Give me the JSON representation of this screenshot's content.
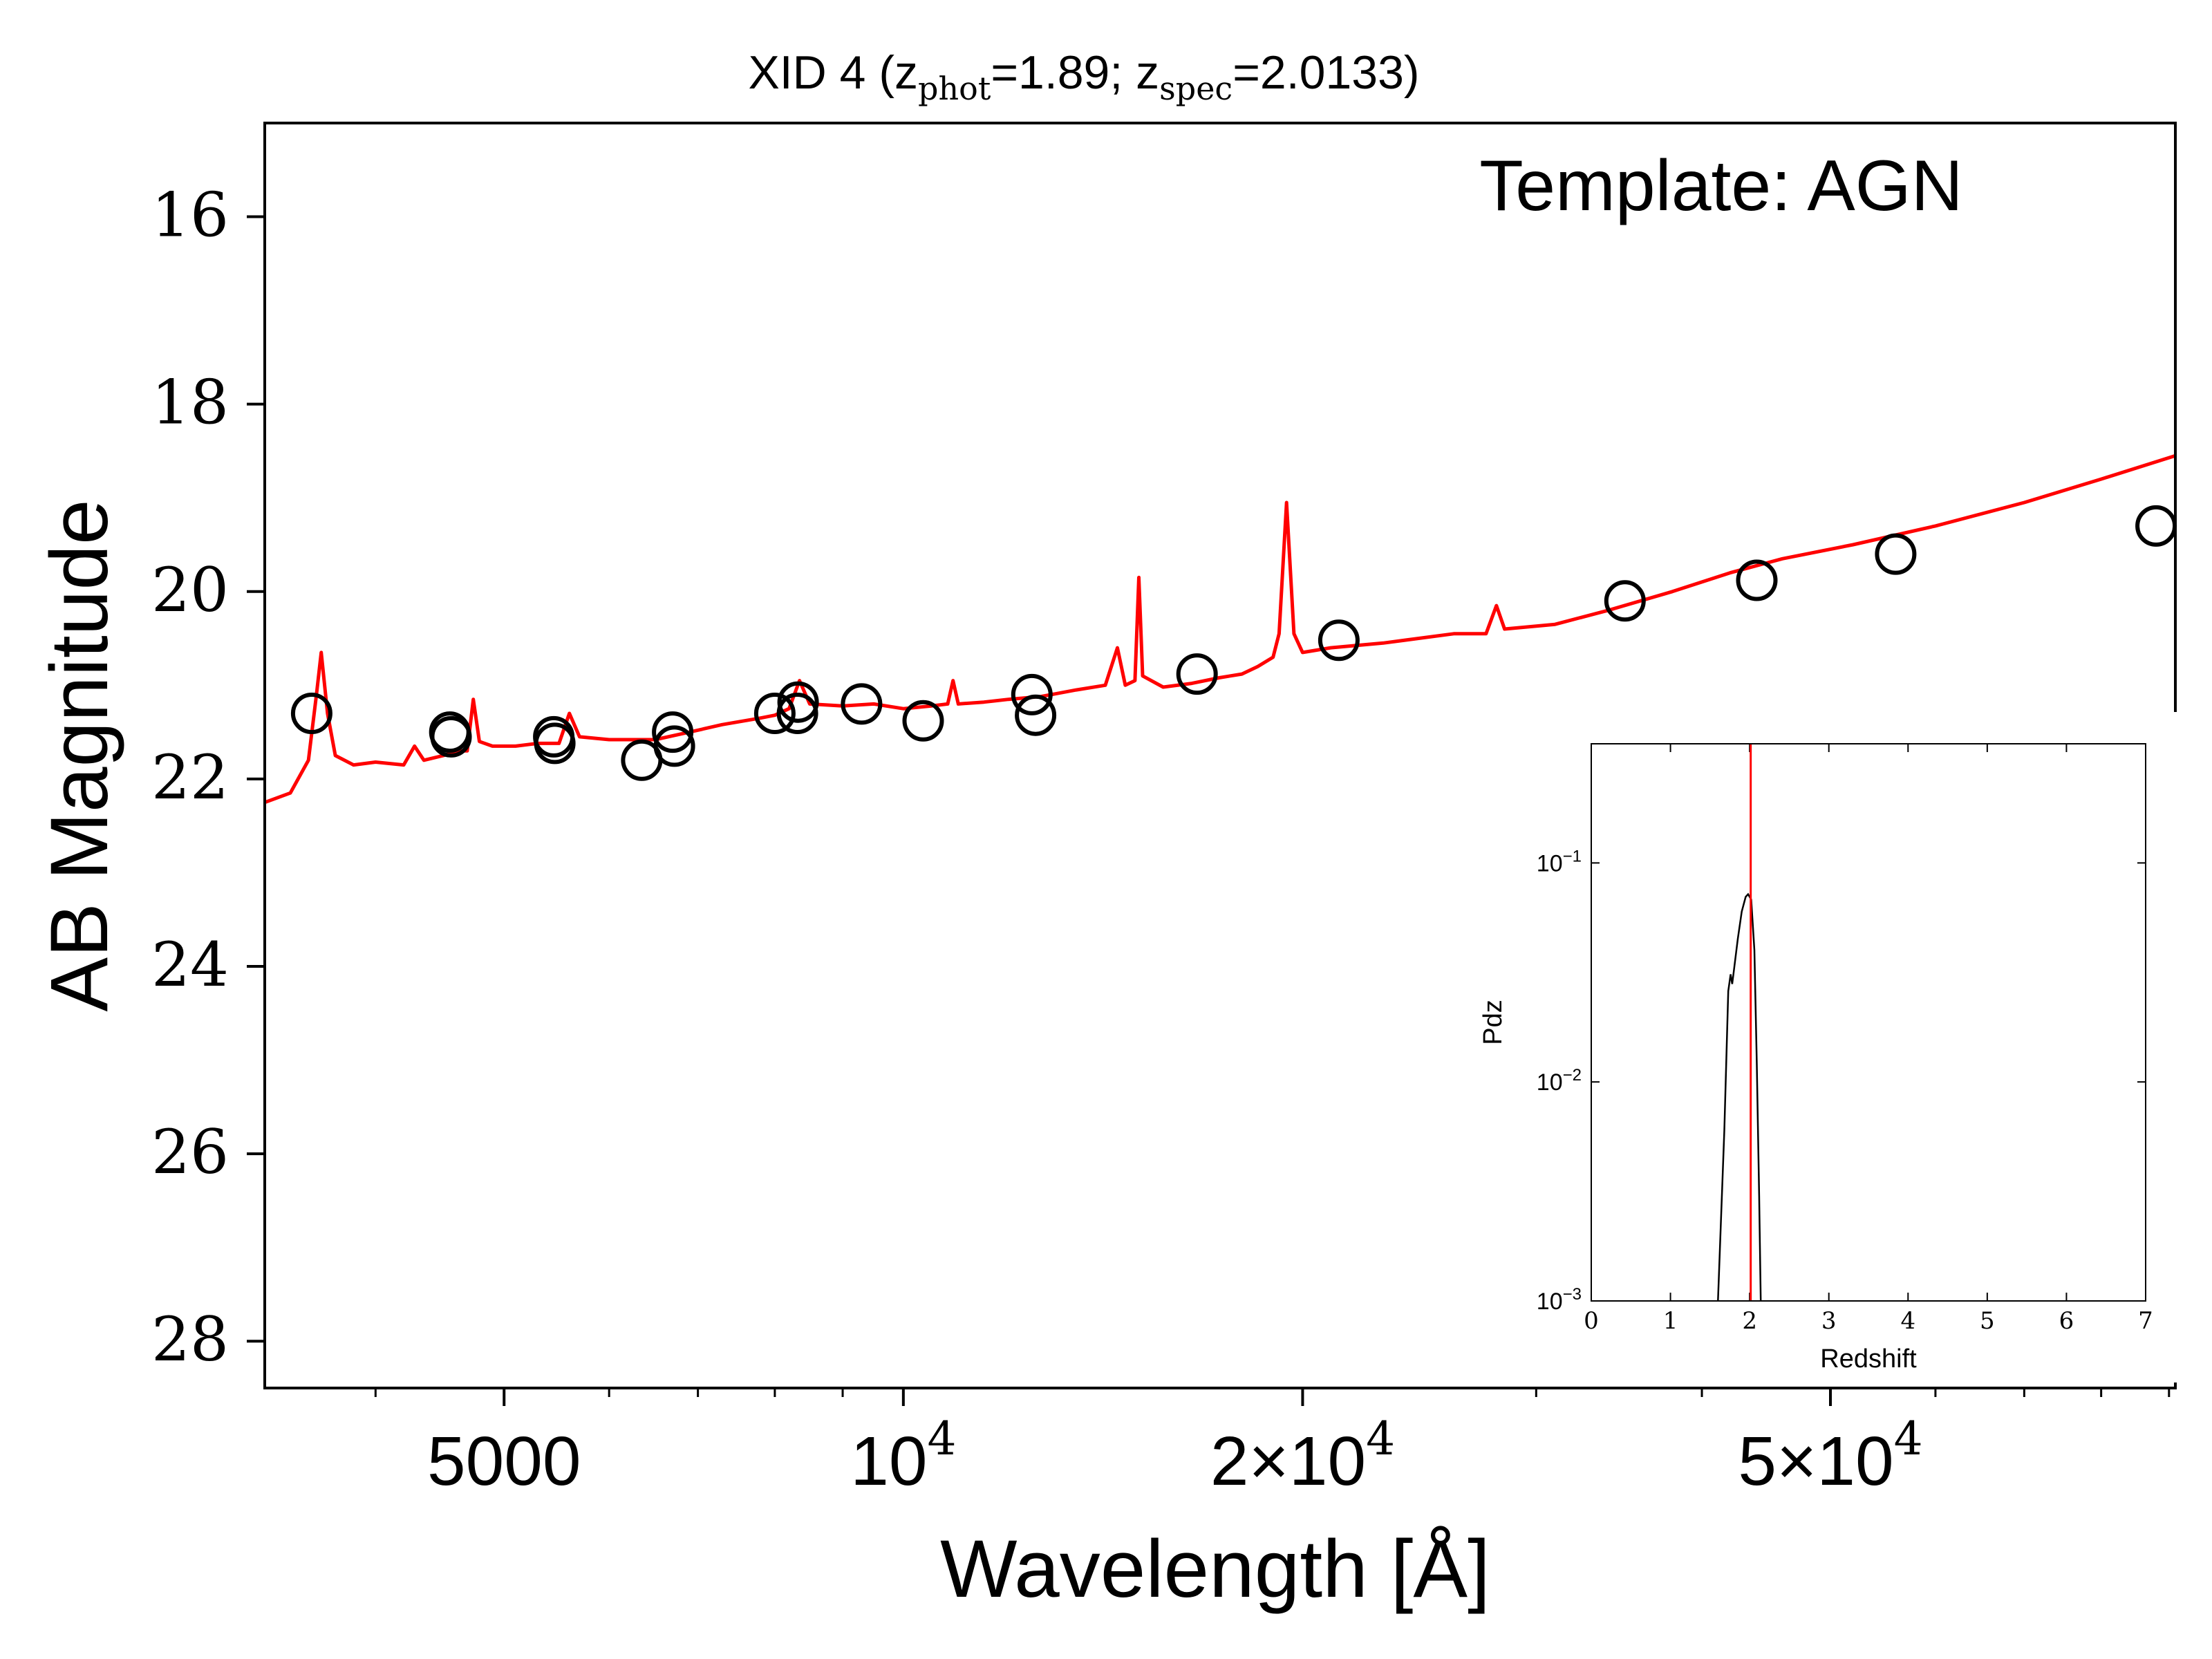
{
  "chart_data": [
    {
      "type": "line",
      "title": "XID 4 (zphot=1.89; zspec=2.0133)",
      "title_parts": {
        "prefix": "XID 4 (z",
        "sub1": "phot",
        "mid": "=1.89; z",
        "sub2": "spec",
        "suffix": "=2.0133)"
      },
      "annotation": "Template: AGN",
      "xlabel": "Wavelength [Å]",
      "ylabel": "AB Magnitude",
      "x_scale": "log",
      "xlim": [
        3300,
        91000
      ],
      "ylim": [
        28.5,
        15
      ],
      "y_inverted": true,
      "yticks": [
        16,
        18,
        20,
        22,
        24,
        26,
        28
      ],
      "xticks": [
        {
          "value": 5000,
          "label": "5000"
        },
        {
          "value": 10000,
          "label": "10",
          "exp": "4"
        },
        {
          "value": 20000,
          "label": "2×10",
          "exp": "4"
        },
        {
          "value": 50000,
          "label": "5×10",
          "exp": "4"
        }
      ],
      "series": [
        {
          "kind": "model",
          "color": "#ff0000",
          "points": [
            [
              3300,
              22.25
            ],
            [
              3450,
              22.15
            ],
            [
              3560,
              21.8
            ],
            [
              3610,
              21.1
            ],
            [
              3640,
              20.65
            ],
            [
              3680,
              21.3
            ],
            [
              3730,
              21.75
            ],
            [
              3850,
              21.85
            ],
            [
              4000,
              21.82
            ],
            [
              4200,
              21.85
            ],
            [
              4280,
              21.65
            ],
            [
              4350,
              21.8
            ],
            [
              4500,
              21.75
            ],
            [
              4600,
              21.7
            ],
            [
              4690,
              21.7
            ],
            [
              4740,
              21.15
            ],
            [
              4790,
              21.6
            ],
            [
              4900,
              21.65
            ],
            [
              5100,
              21.65
            ],
            [
              5300,
              21.62
            ],
            [
              5500,
              21.62
            ],
            [
              5600,
              21.3
            ],
            [
              5700,
              21.55
            ],
            [
              6000,
              21.58
            ],
            [
              6500,
              21.58
            ],
            [
              6900,
              21.5
            ],
            [
              7300,
              21.42
            ],
            [
              7800,
              21.35
            ],
            [
              8000,
              21.32
            ],
            [
              8200,
              21.25
            ],
            [
              8350,
              20.95
            ],
            [
              8500,
              21.2
            ],
            [
              9000,
              21.22
            ],
            [
              9500,
              21.2
            ],
            [
              10000,
              21.25
            ],
            [
              10500,
              21.22
            ],
            [
              10800,
              21.2
            ],
            [
              10900,
              20.95
            ],
            [
              11000,
              21.2
            ],
            [
              11500,
              21.18
            ],
            [
              12000,
              21.15
            ],
            [
              12700,
              21.12
            ],
            [
              13500,
              21.05
            ],
            [
              14200,
              21.0
            ],
            [
              14500,
              20.6
            ],
            [
              14700,
              21.0
            ],
            [
              14950,
              20.95
            ],
            [
              15050,
              19.85
            ],
            [
              15150,
              20.9
            ],
            [
              15700,
              21.02
            ],
            [
              16500,
              20.98
            ],
            [
              17300,
              20.92
            ],
            [
              18000,
              20.88
            ],
            [
              18500,
              20.8
            ],
            [
              19000,
              20.7
            ],
            [
              19200,
              20.45
            ],
            [
              19450,
              19.05
            ],
            [
              19700,
              20.45
            ],
            [
              20000,
              20.65
            ],
            [
              21000,
              20.6
            ],
            [
              23000,
              20.55
            ],
            [
              26000,
              20.45
            ],
            [
              27500,
              20.45
            ],
            [
              28000,
              20.15
            ],
            [
              28400,
              20.4
            ],
            [
              31000,
              20.35
            ],
            [
              34000,
              20.2
            ],
            [
              38000,
              20.0
            ],
            [
              42000,
              19.8
            ],
            [
              46000,
              19.65
            ],
            [
              52000,
              19.5
            ],
            [
              60000,
              19.3
            ],
            [
              70000,
              19.05
            ],
            [
              80000,
              18.8
            ],
            [
              91000,
              18.55
            ]
          ]
        },
        {
          "kind": "photometry",
          "marker": "open-circle",
          "color": "#000000",
          "points": [
            [
              3580,
              21.3
            ],
            [
              4550,
              21.5
            ],
            [
              4560,
              21.55
            ],
            [
              5450,
              21.55
            ],
            [
              5460,
              21.62
            ],
            [
              6350,
              21.8
            ],
            [
              6700,
              21.5
            ],
            [
              6720,
              21.65
            ],
            [
              8000,
              21.3
            ],
            [
              8320,
              21.3
            ],
            [
              8330,
              21.18
            ],
            [
              9300,
              21.2
            ],
            [
              10350,
              21.38
            ],
            [
              12500,
              21.1
            ],
            [
              12580,
              21.32
            ],
            [
              16650,
              20.88
            ],
            [
              21300,
              20.52
            ],
            [
              35000,
              20.1
            ],
            [
              44000,
              19.88
            ],
            [
              56000,
              19.6
            ],
            [
              88000,
              19.3
            ]
          ]
        }
      ]
    },
    {
      "type": "line",
      "title": "",
      "xlabel": "Redshift",
      "ylabel": "Pdz",
      "y_scale": "log",
      "xlim": [
        0,
        7
      ],
      "ylim": [
        0.001,
        0.35
      ],
      "xticks": [
        0,
        1,
        2,
        3,
        4,
        5,
        6,
        7
      ],
      "yticks": [
        {
          "value": 0.1,
          "base": "10",
          "exp": "−1"
        },
        {
          "value": 0.01,
          "base": "10",
          "exp": "−2"
        },
        {
          "value": 0.001,
          "base": "10",
          "exp": "−3"
        }
      ],
      "vline": {
        "x": 2.0133,
        "color": "#ff0000"
      },
      "series": [
        {
          "kind": "pdz",
          "color": "#000000",
          "points": [
            [
              1.6,
              0.001
            ],
            [
              1.68,
              0.006
            ],
            [
              1.73,
              0.026
            ],
            [
              1.76,
              0.031
            ],
            [
              1.78,
              0.028
            ],
            [
              1.8,
              0.032
            ],
            [
              1.85,
              0.045
            ],
            [
              1.9,
              0.06
            ],
            [
              1.95,
              0.07
            ],
            [
              1.98,
              0.072
            ],
            [
              2.02,
              0.068
            ],
            [
              2.06,
              0.04
            ],
            [
              2.09,
              0.012
            ],
            [
              2.12,
              0.003
            ],
            [
              2.14,
              0.001
            ]
          ]
        }
      ]
    }
  ]
}
